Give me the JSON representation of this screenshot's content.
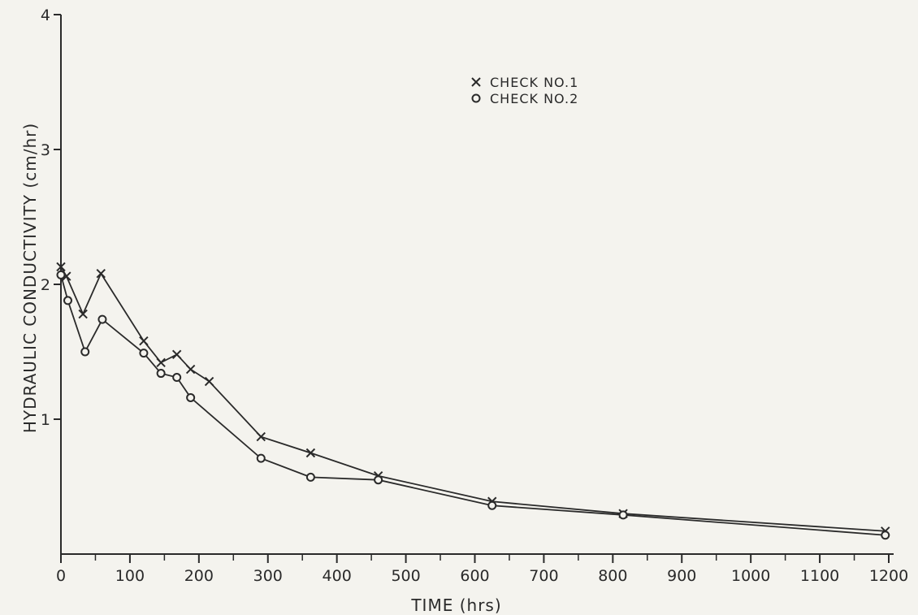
{
  "chart_data": {
    "type": "line",
    "xlabel": "TIME (hrs)",
    "ylabel": "HYDRAULIC CONDUCTIVITY (cm/hr)",
    "xlim": [
      0,
      1200
    ],
    "ylim": [
      0,
      4
    ],
    "x_ticks": [
      0,
      100,
      200,
      300,
      400,
      500,
      600,
      700,
      800,
      900,
      1000,
      1100,
      1200
    ],
    "x_tick_labels": [
      "0",
      "100",
      "200",
      "300",
      "400",
      "500",
      "600",
      "700",
      "800",
      "900",
      "1000",
      "1100",
      "1200"
    ],
    "y_ticks": [
      1,
      2,
      3,
      4
    ],
    "y_tick_labels": [
      "1",
      "2",
      "3",
      "4"
    ],
    "grid": false,
    "legend_position": "top-center",
    "series": [
      {
        "name": "CHECK NO.1",
        "marker": "x",
        "x": [
          0,
          8,
          32,
          58,
          120,
          145,
          168,
          188,
          215,
          290,
          362,
          460,
          625,
          815,
          1195
        ],
        "y": [
          2.13,
          2.06,
          1.78,
          2.08,
          1.58,
          1.42,
          1.48,
          1.37,
          1.28,
          0.87,
          0.75,
          0.58,
          0.39,
          0.3,
          0.17
        ]
      },
      {
        "name": "CHECK NO.2",
        "marker": "o",
        "x": [
          0,
          10,
          35,
          60,
          120,
          145,
          168,
          188,
          290,
          362,
          460,
          625,
          815,
          1195
        ],
        "y": [
          2.07,
          1.88,
          1.5,
          1.74,
          1.49,
          1.34,
          1.31,
          1.16,
          0.71,
          0.57,
          0.55,
          0.36,
          0.29,
          0.14
        ]
      }
    ]
  }
}
